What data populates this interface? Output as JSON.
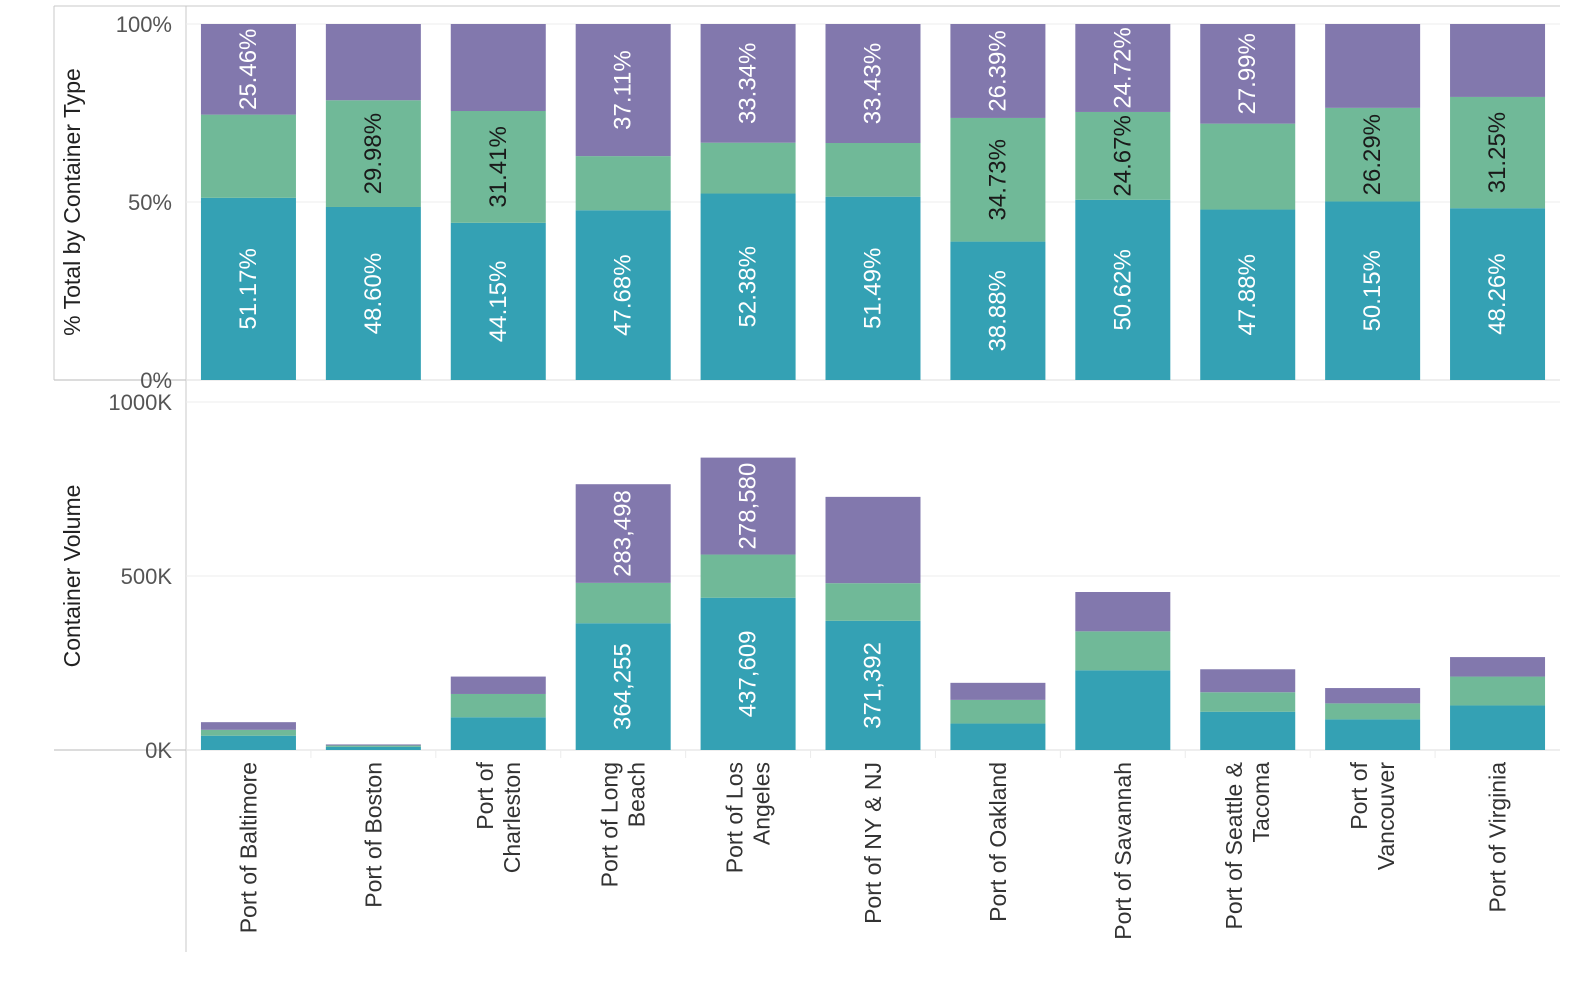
{
  "chart_data": [
    {
      "type": "bar",
      "stacked": true,
      "normalized": true,
      "ylabel": "% Total by Container Type",
      "yticks": [
        "100%",
        "50%",
        "0%"
      ],
      "ylim": [
        0,
        1
      ],
      "grid": true,
      "categories": [
        "Port of Baltimore",
        "Port of Boston",
        "Port of Charleston",
        "Port of Long Beach",
        "Port of Los Angeles",
        "Port of NY & NJ",
        "Port of Oakland",
        "Port of Savannah",
        "Port of Seattle & Tacoma",
        "Port of Vancouver",
        "Port of Virginia"
      ],
      "series": [
        {
          "values": [
            0.5117,
            0.486,
            0.4415,
            0.4768,
            0.5238,
            0.5149,
            0.3888,
            0.5062,
            0.4788,
            0.5015,
            0.4826
          ],
          "labels": [
            "51.17%",
            "48.60%",
            "44.15%",
            "47.68%",
            "52.38%",
            "51.49%",
            "38.88%",
            "50.62%",
            "47.88%",
            "50.15%",
            "48.26%"
          ]
        },
        {
          "values": [
            0.2337,
            0.2998,
            0.3141,
            0.1521,
            0.1428,
            0.1508,
            0.3473,
            0.2467,
            0.2413,
            0.2629,
            0.3125
          ],
          "labels": [
            "",
            "29.98%",
            "31.41%",
            "",
            "",
            "",
            "34.73%",
            "24.67%",
            "",
            "26.29%",
            "31.25%"
          ]
        },
        {
          "values": [
            0.2546,
            0.2142,
            0.2444,
            0.3711,
            0.3334,
            0.3343,
            0.2639,
            0.2472,
            0.2799,
            0.2356,
            0.2049
          ],
          "labels": [
            "25.46%",
            "",
            "",
            "37.11%",
            "33.34%",
            "33.43%",
            "26.39%",
            "24.72%",
            "27.99%",
            "",
            ""
          ]
        }
      ]
    },
    {
      "type": "bar",
      "stacked": true,
      "ylabel": "Container Volume",
      "yticks": [
        "1000K",
        "500K",
        "0K"
      ],
      "ylim": [
        0,
        1000000
      ],
      "grid": true,
      "categories": [
        "Port of Baltimore",
        "Port of Boston",
        "Port of Charleston",
        "Port of Long Beach",
        "Port of Los Angeles",
        "Port of NY & NJ",
        "Port of Oakland",
        "Port of Savannah",
        "Port of Seattle & Tacoma",
        "Port of Vancouver",
        "Port of Virginia"
      ],
      "series": [
        {
          "values": [
            41000,
            9000,
            94000,
            364255,
            437609,
            371392,
            76000,
            229000,
            110000,
            88000,
            128000
          ],
          "labels": [
            "",
            "",
            "",
            "364,255",
            "437,609",
            "371,392",
            "",
            "",
            "",
            "",
            ""
          ]
        },
        {
          "values": [
            17000,
            4000,
            67000,
            116000,
            124000,
            108000,
            68000,
            112000,
            56000,
            46000,
            83000
          ],
          "labels": [
            "",
            "",
            "",
            "",
            "",
            "",
            "",
            "",
            "",
            "",
            ""
          ]
        },
        {
          "values": [
            22000,
            3000,
            50000,
            283498,
            278580,
            248000,
            49000,
            113000,
            66000,
            44000,
            56000
          ],
          "labels": [
            "",
            "",
            "",
            "283,498",
            "278,580",
            "",
            "",
            "",
            "",
            "",
            ""
          ]
        }
      ]
    }
  ],
  "x_axis": {
    "category_lines": [
      [
        "Port of Baltimore"
      ],
      [
        "Port of Boston"
      ],
      [
        "Port of",
        "Charleston"
      ],
      [
        "Port of Long",
        "Beach"
      ],
      [
        "Port of Los",
        "Angeles"
      ],
      [
        "Port of NY & NJ"
      ],
      [
        "Port of Oakland"
      ],
      [
        "Port of Savannah"
      ],
      [
        "Port of Seattle &",
        "Tacoma"
      ],
      [
        "Port of",
        "Vancouver"
      ],
      [
        "Port of Virginia"
      ]
    ]
  },
  "colors": {
    "series": [
      "#34a1b4",
      "#70b998",
      "#8278ad"
    ],
    "label_on_dark": "#ffffff",
    "label_on_light": "#1a1a1a",
    "grid": "#ececec",
    "axis": "#c8c8c8",
    "tick_text": "#555555",
    "title_text": "#222222",
    "xlabel_text": "#333333"
  }
}
